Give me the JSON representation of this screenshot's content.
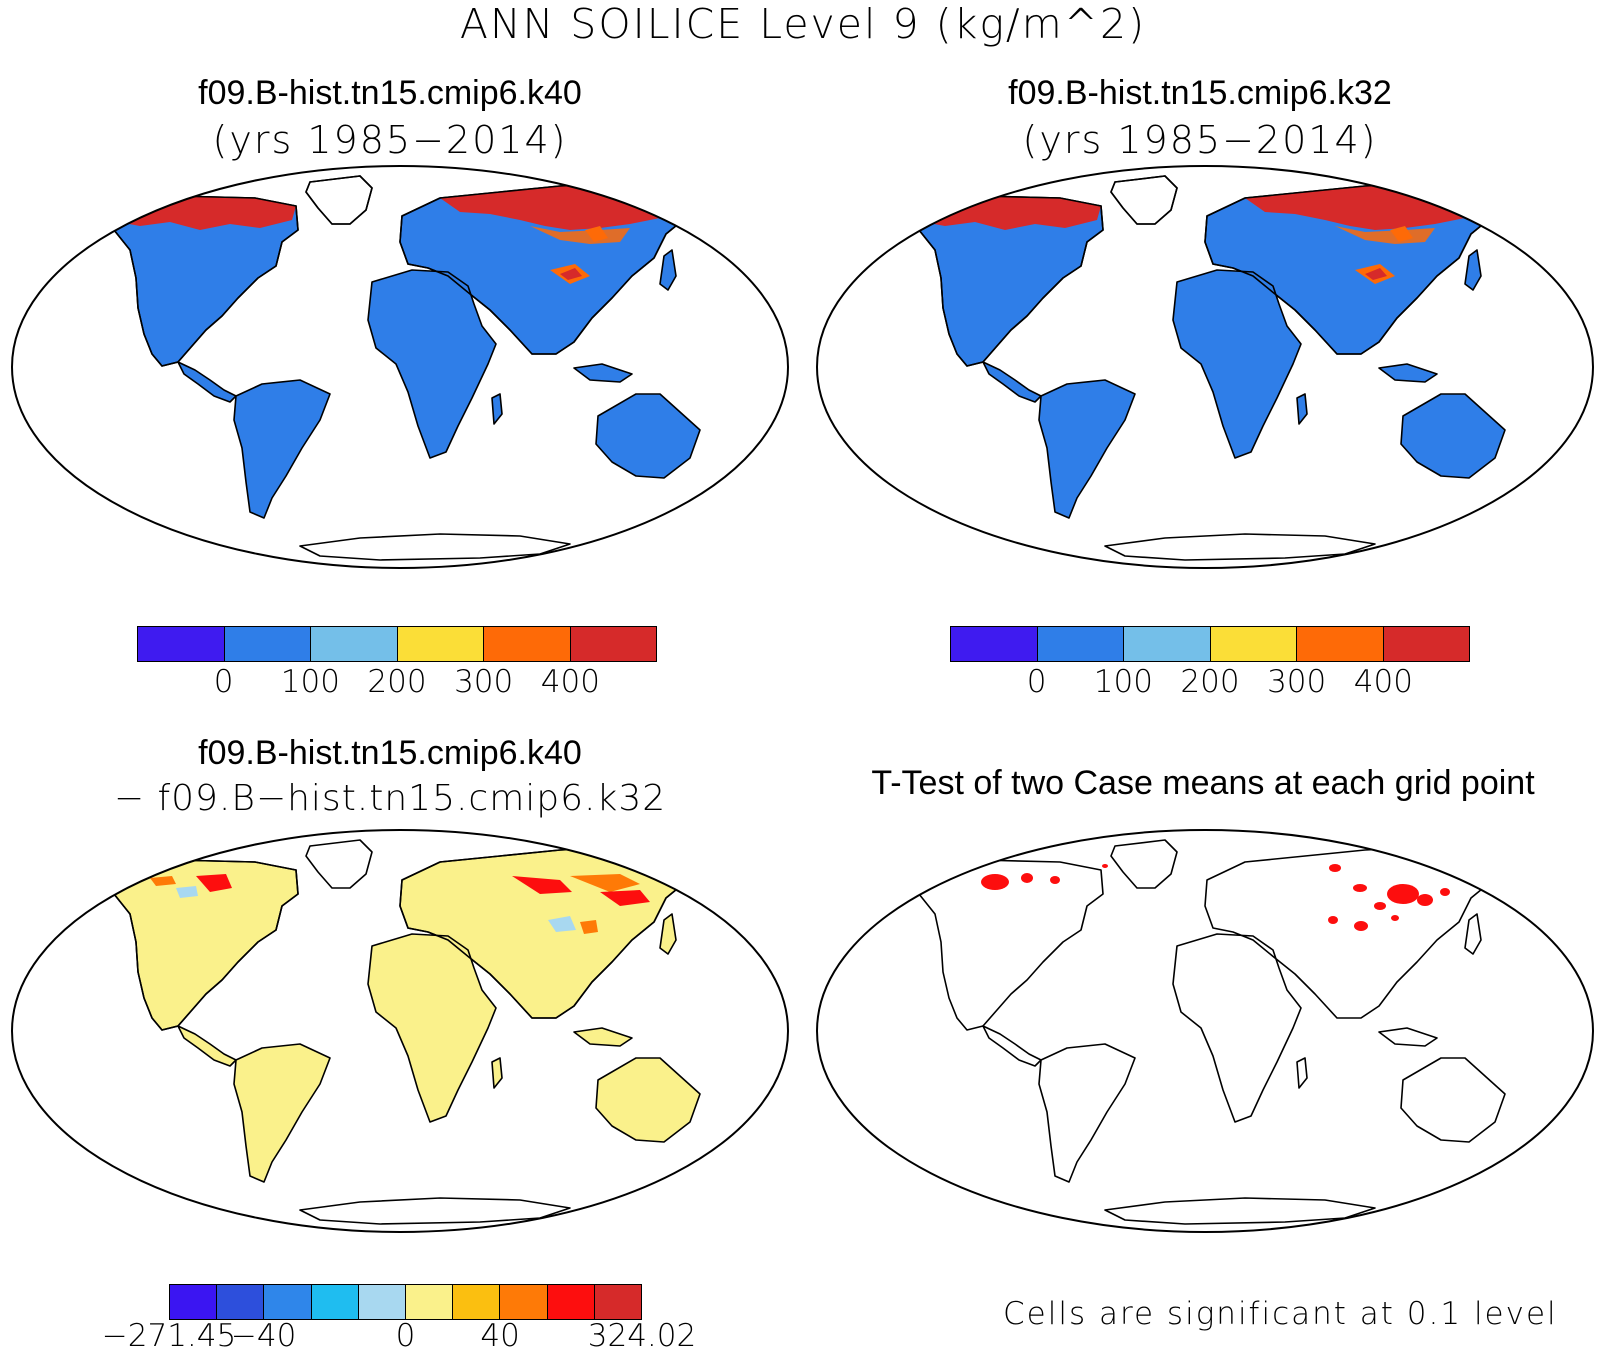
{
  "main_title": "ANN SOILICE Level 9 (kg/m^2)",
  "panels": {
    "top_left": {
      "title": "f09.B-hist.tn15.cmip6.k40",
      "subtitle": "(yrs 1985−2014)"
    },
    "top_right": {
      "title": "f09.B-hist.tn15.cmip6.k32",
      "subtitle": "(yrs 1985−2014)"
    },
    "bottom_left": {
      "title": "f09.B-hist.tn15.cmip6.k40",
      "subtitle": "− f09.B−hist.tn15.cmip6.k32"
    },
    "bottom_right": {
      "title": "T-Test of two Case means at each grid point",
      "note": "Cells are significant at 0.1 level"
    }
  },
  "colorbar_cases": {
    "colors": [
      "#3f1bf0",
      "#2f7ee8",
      "#74bfe9",
      "#fbde37",
      "#fe6a07",
      "#d62a2a"
    ],
    "labels": [
      "0",
      "100",
      "200",
      "300",
      "400"
    ]
  },
  "colorbar_diff": {
    "colors": [
      "#3b15f2",
      "#2d4fdc",
      "#2f86ea",
      "#1fbdf0",
      "#a8d8f0",
      "#faf18b",
      "#fbbf10",
      "#fe7a07",
      "#fd0e0e",
      "#d62a2a"
    ],
    "labels": [
      "−271.45",
      "−40",
      "0",
      "40",
      "324.02"
    ]
  },
  "colors": {
    "land_case": "#2f7ee8",
    "land_diff": "#faf18b",
    "permafrost_high": "#d62a2a",
    "permafrost_mid": "#fe6a07",
    "significant": "#fd0e0e"
  }
}
